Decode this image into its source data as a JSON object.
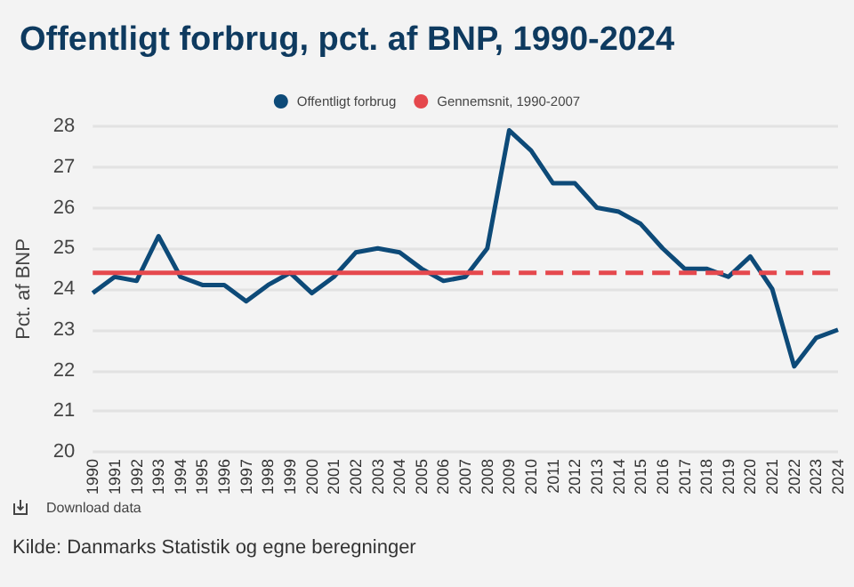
{
  "chart_data": {
    "type": "line",
    "title": "Offentligt forbrug, pct. af BNP, 1990-2024",
    "ylabel": "Pct. af BNP",
    "categories": [
      "1990",
      "1991",
      "1992",
      "1993",
      "1994",
      "1995",
      "1996",
      "1997",
      "1998",
      "1999",
      "2000",
      "2001",
      "2002",
      "2003",
      "2004",
      "2005",
      "2006",
      "2007",
      "2008",
      "2009",
      "2010",
      "2011",
      "2012",
      "2013",
      "2014",
      "2015",
      "2016",
      "2017",
      "2018",
      "2019",
      "2020",
      "2021",
      "2022",
      "2023",
      "2024"
    ],
    "series": [
      {
        "name": "Offentligt forbrug",
        "color": "#0d4a78",
        "values": [
          23.9,
          24.3,
          24.2,
          25.3,
          24.3,
          24.1,
          24.1,
          23.7,
          24.1,
          24.4,
          23.9,
          24.3,
          24.9,
          25.0,
          24.9,
          24.5,
          24.2,
          24.3,
          25.0,
          27.9,
          27.4,
          26.6,
          26.6,
          26.0,
          25.9,
          25.6,
          25.0,
          24.5,
          24.5,
          24.3,
          24.8,
          24.0,
          22.1,
          22.8,
          23.0
        ]
      },
      {
        "name": "Gennemsnit, 1990-2007",
        "color": "#e5484d",
        "values": [
          24.4,
          24.4,
          24.4,
          24.4,
          24.4,
          24.4,
          24.4,
          24.4,
          24.4,
          24.4,
          24.4,
          24.4,
          24.4,
          24.4,
          24.4,
          24.4,
          24.4,
          24.4,
          null,
          null,
          null,
          null,
          null,
          null,
          null,
          null,
          null,
          null,
          null,
          null,
          null,
          null,
          null,
          null,
          null
        ]
      },
      {
        "color": "#e5484d",
        "line_style": "dashed",
        "values": [
          null,
          null,
          null,
          null,
          null,
          null,
          null,
          null,
          null,
          null,
          null,
          null,
          null,
          null,
          null,
          null,
          null,
          24.4,
          24.4,
          24.4,
          24.4,
          24.4,
          24.4,
          24.4,
          24.4,
          24.4,
          24.4,
          24.4,
          24.4,
          24.4,
          24.4,
          24.4,
          24.4,
          24.4,
          24.4
        ]
      }
    ],
    "ylim": [
      20,
      28
    ],
    "yticks": [
      20,
      21,
      22,
      23,
      24,
      25,
      26,
      27,
      28
    ],
    "grid": "y",
    "legend": "top",
    "marker": "none",
    "line_style": "solid",
    "annotations": [
      "Download data",
      "Kilde: Danmarks Statistik og egne beregninger"
    ]
  }
}
